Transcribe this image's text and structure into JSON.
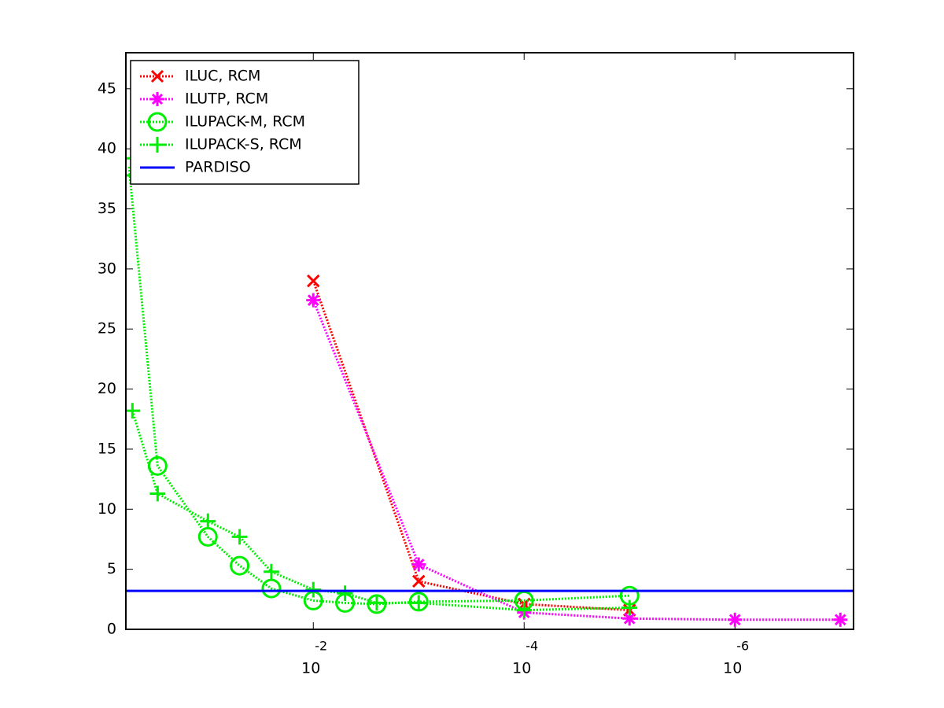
{
  "chart_data": {
    "type": "line",
    "xscale": "log",
    "xlim": [
      0.6,
      7.5e-08
    ],
    "xticks": [
      {
        "value": 0.01,
        "label": "10",
        "exponent": "-2"
      },
      {
        "value": 0.0001,
        "label": "10",
        "exponent": "-4"
      },
      {
        "value": 1e-06,
        "label": "10",
        "exponent": "-6"
      }
    ],
    "ylim": [
      0,
      48
    ],
    "yticks": [
      0,
      5,
      10,
      15,
      20,
      25,
      30,
      35,
      40,
      45
    ],
    "legend": "upper left",
    "series": [
      {
        "name": "ILUC, RCM",
        "color": "#ff0000",
        "marker": "x",
        "linestyle": "dotted",
        "x": [
          0.01,
          0.001,
          0.0001,
          1e-05
        ],
        "values": [
          29,
          4,
          2.1,
          1.6
        ]
      },
      {
        "name": "ILUTP, RCM",
        "color": "#ff00ff",
        "marker": "*",
        "linestyle": "dotted",
        "x": [
          0.01,
          0.001,
          0.0001,
          1e-05,
          1e-06,
          1e-07
        ],
        "values": [
          27.4,
          5.4,
          1.4,
          0.9,
          0.8,
          0.8
        ]
      },
      {
        "name": "ILUPACK-M, RCM",
        "color": "#00ee00",
        "marker": "o",
        "linestyle": "dotted",
        "x": [
          0.56,
          0.3,
          0.1,
          0.05,
          0.025,
          0.01,
          0.005,
          0.0025,
          0.001,
          0.0001,
          1e-05
        ],
        "values": [
          38.5,
          13.6,
          7.7,
          5.3,
          3.4,
          2.4,
          2.2,
          2.1,
          2.3,
          2.4,
          2.8
        ]
      },
      {
        "name": "ILUPACK-S, RCM",
        "color": "#00ee00",
        "marker": "+",
        "linestyle": "dotted",
        "x": [
          0.52,
          0.3,
          0.1,
          0.05,
          0.025,
          0.01,
          0.005,
          0.0025,
          0.001,
          0.0001,
          1e-05
        ],
        "values": [
          18.2,
          11.3,
          9.0,
          7.7,
          4.8,
          3.3,
          3.0,
          2.2,
          2.2,
          1.6,
          1.8
        ]
      },
      {
        "name": "PARDISO",
        "color": "#0000ff",
        "marker": "none",
        "linestyle": "solid",
        "x": [
          0.6,
          7.5e-08
        ],
        "values": [
          3.2,
          3.2
        ]
      }
    ]
  }
}
